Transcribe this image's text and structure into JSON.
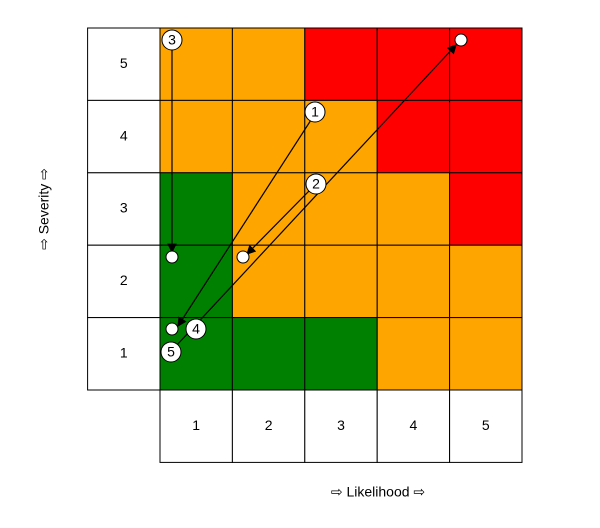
{
  "severity_axis": {
    "label": "⇨ Severity ⇨",
    "levels": [
      "5",
      "4",
      "3",
      "2",
      "1"
    ]
  },
  "likelihood_axis": {
    "label": "⇨ Likelihood ⇨",
    "levels": [
      "1",
      "2",
      "3",
      "4",
      "5"
    ]
  },
  "cell_colors": [
    [
      "#ffa500",
      "#ffa500",
      "#ff0000",
      "#ff0000",
      "#ff0000"
    ],
    [
      "#ffa500",
      "#ffa500",
      "#ffa500",
      "#ff0000",
      "#ff0000"
    ],
    [
      "#008000",
      "#ffa500",
      "#ffa500",
      "#ffa500",
      "#ff0000"
    ],
    [
      "#008000",
      "#ffa500",
      "#ffa500",
      "#ffa500",
      "#ffa500"
    ],
    [
      "#008000",
      "#008000",
      "#008000",
      "#ffa500",
      "#ffa500"
    ]
  ],
  "markers": [
    "3",
    "1",
    "2",
    "4",
    "5"
  ]
}
